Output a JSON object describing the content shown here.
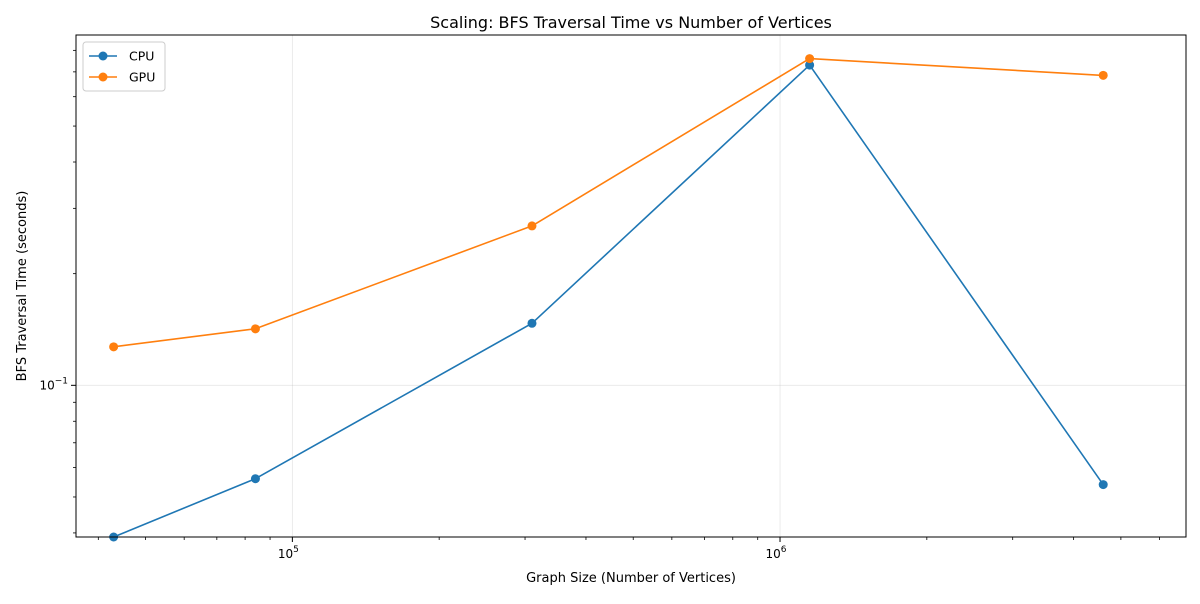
{
  "chart_data": {
    "type": "line",
    "title": "Scaling: BFS Traversal Time vs Number of Vertices",
    "xlabel": "Graph Size (Number of Vertices)",
    "ylabel": "BFS Traversal Time (seconds)",
    "x_scale": "log",
    "y_scale": "log",
    "xlim": [
      36000,
      6800000
    ],
    "ylim": [
      0.039,
      0.88
    ],
    "x_major_ticks": [
      {
        "value": 100000,
        "base": "10",
        "exp": "5"
      },
      {
        "value": 1000000,
        "base": "10",
        "exp": "6"
      }
    ],
    "y_major_ticks": [
      {
        "value": 0.1,
        "base": "10",
        "exp": "−1"
      }
    ],
    "grid": true,
    "legend_position": "top-left",
    "x": [
      43000,
      84000,
      310000,
      1150000,
      4600000
    ],
    "series": [
      {
        "name": "CPU",
        "color": "#1f77b4",
        "values": [
          0.039,
          0.056,
          0.147,
          0.73,
          0.054
        ]
      },
      {
        "name": "GPU",
        "color": "#ff7f0e",
        "values": [
          0.127,
          0.142,
          0.269,
          0.76,
          0.685
        ]
      }
    ]
  }
}
